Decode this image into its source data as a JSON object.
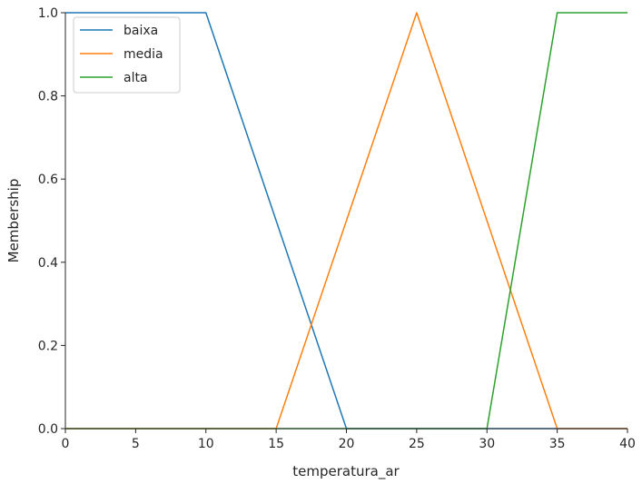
{
  "chart_data": {
    "type": "line",
    "xlabel": "temperatura_ar",
    "ylabel": "Membership",
    "xlim": [
      0,
      40
    ],
    "ylim": [
      0,
      1.0
    ],
    "xticks": [
      "0",
      "5",
      "10",
      "15",
      "20",
      "25",
      "30",
      "35",
      "40"
    ],
    "xtick_values": [
      0,
      5,
      10,
      15,
      20,
      25,
      30,
      35,
      40
    ],
    "yticks": [
      "0.0",
      "0.2",
      "0.4",
      "0.6",
      "0.8",
      "1.0"
    ],
    "ytick_values": [
      0,
      0.2,
      0.4,
      0.6,
      0.8,
      1.0
    ],
    "grid": false,
    "legend_position": "upper-left",
    "series": [
      {
        "name": "baixa",
        "color": "#1f77b4",
        "points": [
          [
            0,
            1.0
          ],
          [
            10,
            1.0
          ],
          [
            20,
            0.0
          ],
          [
            40,
            0.0
          ]
        ]
      },
      {
        "name": "media",
        "color": "#ff7f0e",
        "points": [
          [
            0,
            0.0
          ],
          [
            15,
            0.0
          ],
          [
            25,
            1.0
          ],
          [
            35,
            0.0
          ],
          [
            40,
            0.0
          ]
        ]
      },
      {
        "name": "alta",
        "color": "#2ca02c",
        "points": [
          [
            0,
            0.0
          ],
          [
            30,
            0.0
          ],
          [
            35,
            1.0
          ],
          [
            40,
            1.0
          ]
        ]
      }
    ]
  }
}
